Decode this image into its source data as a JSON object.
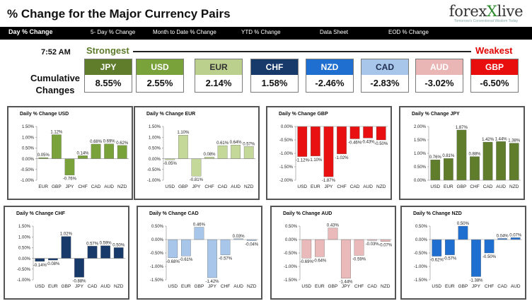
{
  "title": "% Change for the Major Currency Pairs",
  "logo": {
    "brand_main": "forex",
    "brand_accent": "X",
    "brand_end": "live",
    "tagline": "Tomorrow's Conventional Wisdom Today"
  },
  "nav": [
    "Day % Change",
    "5- Day % Change",
    "Month to Date % Change",
    "YTD % Change",
    "Data Sheet",
    "EOD % Change"
  ],
  "timestamp": "7:52 AM",
  "strongest_label": "Strongest",
  "weakest_label": "Weakest",
  "cumulative_label": "Cumulative Changes",
  "currencies": [
    {
      "code": "JPY",
      "value": "8.55%",
      "color": "#5f7d2b",
      "text_color": "#ffffff"
    },
    {
      "code": "USD",
      "value": "2.55%",
      "color": "#7aa23a",
      "text_color": "#ffffff"
    },
    {
      "code": "EUR",
      "value": "2.14%",
      "color": "#bcd08e",
      "text_color": "#333333"
    },
    {
      "code": "CHF",
      "value": "1.58%",
      "color": "#173a6b",
      "text_color": "#ffffff"
    },
    {
      "code": "NZD",
      "value": "-2.46%",
      "color": "#1f6fd0",
      "text_color": "#ffffff"
    },
    {
      "code": "CAD",
      "value": "-2.83%",
      "color": "#a8c6ea",
      "text_color": "#1f2f4f"
    },
    {
      "code": "AUD",
      "value": "-3.02%",
      "color": "#e9b5b5",
      "text_color": "#ffffff"
    },
    {
      "code": "GBP",
      "value": "-6.50%",
      "color": "#e80e0e",
      "text_color": "#ffffff"
    }
  ],
  "chart_data": [
    {
      "type": "bar",
      "title": "Daily % Change USD",
      "categories": [
        "EUR",
        "GBP",
        "JPY",
        "CHF",
        "CAD",
        "AUD",
        "NZD"
      ],
      "values": [
        0.05,
        1.12,
        -0.76,
        0.14,
        0.68,
        0.69,
        0.62
      ],
      "value_labels": [
        "0.05%",
        "1.12%",
        "-0.76%",
        "0.14%",
        "0.68%",
        "0.69%",
        "0.62%"
      ],
      "ylim": [
        -1.0,
        1.5
      ],
      "yticks": [
        -1.0,
        -0.5,
        0.0,
        0.5,
        1.0,
        1.5
      ],
      "ytick_labels": [
        "-1.00%",
        "-0.50%",
        "0.00%",
        "0.50%",
        "1.00%",
        "1.50%"
      ],
      "bar_color": "#7aa23a"
    },
    {
      "type": "bar",
      "title": "Daily % Change EUR",
      "categories": [
        "USD",
        "GBP",
        "JPY",
        "CHF",
        "CAD",
        "AUD",
        "NZD"
      ],
      "values": [
        -0.05,
        1.1,
        -0.81,
        0.08,
        0.61,
        0.64,
        0.57
      ],
      "value_labels": [
        "-0.05%",
        "1.10%",
        "-0.81%",
        "0.08%",
        "0.61%",
        "0.64%",
        "0.57%"
      ],
      "ylim": [
        -1.0,
        1.5
      ],
      "yticks": [
        -1.0,
        -0.5,
        0.0,
        0.5,
        1.0,
        1.5
      ],
      "ytick_labels": [
        "-1.00%",
        "-0.50%",
        "0.00%",
        "0.50%",
        "1.00%",
        "1.50%"
      ],
      "bar_color": "#c4d89a"
    },
    {
      "type": "bar",
      "title": "Daily % Change GBP",
      "categories": [
        "USD",
        "EUR",
        "JPY",
        "CHF",
        "CAD",
        "AUD",
        "NZD"
      ],
      "values": [
        -1.12,
        -1.1,
        -1.87,
        -1.02,
        -0.46,
        -0.43,
        -0.5
      ],
      "value_labels": [
        "-1.12%",
        "-1.10%",
        "-1.87%",
        "-1.02%",
        "-0.46%",
        "-0.43%",
        "-0.50%"
      ],
      "ylim": [
        -2.0,
        0.0
      ],
      "yticks": [
        -2.0,
        -1.5,
        -1.0,
        -0.5,
        0.0
      ],
      "ytick_labels": [
        "-2.00%",
        "-1.50%",
        "-1.00%",
        "-0.50%",
        "0.00%"
      ],
      "bar_color": "#e81010"
    },
    {
      "type": "bar",
      "title": "Daily % Change JPY",
      "categories": [
        "USD",
        "EUR",
        "GBP",
        "CHF",
        "CAD",
        "AUD",
        "NZD"
      ],
      "values": [
        0.76,
        0.81,
        1.87,
        0.88,
        1.42,
        1.44,
        1.38
      ],
      "value_labels": [
        "0.76%",
        "0.81%",
        "1.87%",
        "0.88%",
        "1.42%",
        "1.44%",
        "1.38%"
      ],
      "ylim": [
        0.0,
        2.0
      ],
      "yticks": [
        0.0,
        0.5,
        1.0,
        1.5,
        2.0
      ],
      "ytick_labels": [
        "0.00%",
        "0.50%",
        "1.00%",
        "1.50%",
        "2.00%"
      ],
      "bar_color": "#5f7d2b"
    },
    {
      "type": "bar",
      "title": "Daily % Change CHF",
      "categories": [
        "USD",
        "EUR",
        "GBP",
        "JPY",
        "CAD",
        "AUD",
        "NZD"
      ],
      "values": [
        -0.14,
        -0.08,
        1.02,
        -0.88,
        0.57,
        0.59,
        0.5
      ],
      "value_labels": [
        "-0.14%",
        "-0.08%",
        "1.02%",
        "-0.88%",
        "0.57%",
        "0.59%",
        "0.50%"
      ],
      "ylim": [
        -1.0,
        1.5
      ],
      "yticks": [
        -1.0,
        -0.5,
        0.0,
        0.5,
        1.0,
        1.5
      ],
      "ytick_labels": [
        "-1.00%",
        "-0.50%",
        "0.00%",
        "0.50%",
        "1.00%",
        "1.50%"
      ],
      "bar_color": "#173a6b"
    },
    {
      "type": "bar",
      "title": "Daily % Change CAD",
      "categories": [
        "USD",
        "EUR",
        "GBP",
        "JPY",
        "CHF",
        "AUD",
        "NZD"
      ],
      "values": [
        -0.68,
        -0.61,
        0.46,
        -1.42,
        -0.57,
        0.03,
        -0.04
      ],
      "value_labels": [
        "-0.68%",
        "-0.61%",
        "0.46%",
        "-1.42%",
        "-0.57%",
        "0.03%",
        "-0.04%"
      ],
      "ylim": [
        -1.5,
        0.5
      ],
      "yticks": [
        -1.5,
        -1.0,
        -0.5,
        0.0,
        0.5
      ],
      "ytick_labels": [
        "-1.50%",
        "-1.00%",
        "-0.50%",
        "0.00%",
        "0.50%"
      ],
      "bar_color": "#a8c6ea"
    },
    {
      "type": "bar",
      "title": "Daily % Change AUD",
      "categories": [
        "USD",
        "EUR",
        "GBP",
        "JPY",
        "CHF",
        "CAD",
        "NZD"
      ],
      "values": [
        -0.69,
        -0.64,
        0.43,
        -1.44,
        -0.59,
        -0.03,
        -0.07
      ],
      "value_labels": [
        "-0.69%",
        "-0.64%",
        "0.43%",
        "-1.44%",
        "-0.59%",
        "-0.03%",
        "-0.07%"
      ],
      "ylim": [
        -1.5,
        0.5
      ],
      "yticks": [
        -1.5,
        -1.0,
        -0.5,
        0.0,
        0.5
      ],
      "ytick_labels": [
        "-1.50%",
        "-1.00%",
        "-0.50%",
        "0.00%",
        "0.50%"
      ],
      "bar_color": "#eab9b9"
    },
    {
      "type": "bar",
      "title": "Daily % Change NZD",
      "categories": [
        "USD",
        "EUR",
        "GBP",
        "JPY",
        "CHF",
        "CAD",
        "AUD"
      ],
      "values": [
        -0.62,
        -0.57,
        0.5,
        -1.38,
        -0.5,
        0.04,
        0.07
      ],
      "value_labels": [
        "-0.62%",
        "-0.57%",
        "0.50%",
        "-1.38%",
        "-0.50%",
        "0.04%",
        "0.07%"
      ],
      "ylim": [
        -1.5,
        0.5
      ],
      "yticks": [
        -1.5,
        -1.0,
        -0.5,
        0.0,
        0.5
      ],
      "ytick_labels": [
        "-1.50%",
        "-1.00%",
        "-0.50%",
        "0.00%",
        "0.50%"
      ],
      "bar_color": "#1f6fd0"
    }
  ]
}
